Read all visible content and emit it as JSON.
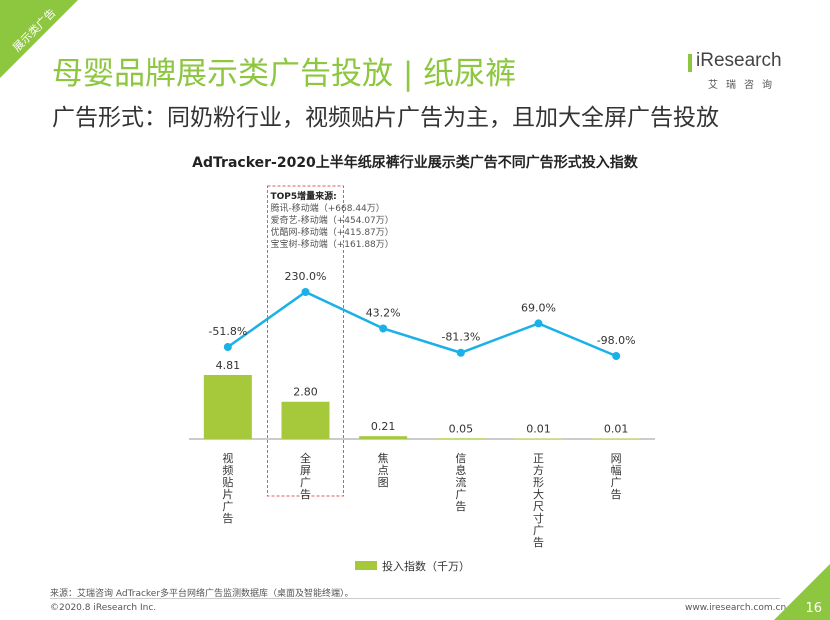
{
  "corner_tag": "展示类广告",
  "title": "母婴品牌展示类广告投放 | 纸尿裤",
  "subtitle": "广告形式：同奶粉行业，视频贴片广告为主，且加大全屏广告投放",
  "logo": {
    "name": "iResearch",
    "sub": "艾瑞咨询"
  },
  "note_lines": [
    "TOP5增量来源:",
    "腾讯-移动端（+668.44万）",
    "爱奇艺-移动端（+454.07万）",
    "优酷网-移动端（+415.87万）",
    "宝宝树-移动端（+161.88万）"
  ],
  "footer": {
    "source": "来源：艾瑞咨询 AdTracker多平台网络广告监测数据库（桌面及智能终端）。",
    "copyright": "©2020.8 iResearch Inc.",
    "site": "www.iresearch.com.cn",
    "page": "16"
  },
  "colors": {
    "bar": "#a5c93a",
    "line": "#1ab0e8",
    "accent": "#8dc63f"
  },
  "chart_data": {
    "type": "bar",
    "title": "AdTracker-2020上半年纸尿裤行业展示类广告不同广告形式投入指数",
    "categories": [
      "视频贴片广告",
      "全屏广告",
      "焦点图",
      "信息流广告",
      "正方形大尺寸广告",
      "网幅广告"
    ],
    "series": [
      {
        "name": "投入指数（千万）",
        "values": [
          4.81,
          2.8,
          0.21,
          0.05,
          0.01,
          0.01
        ],
        "labels": [
          "4.81",
          "2.80",
          "0.21",
          "0.05",
          "0.01",
          "0.01"
        ]
      }
    ],
    "growth_line": {
      "values": [
        -51.8,
        230.0,
        43.2,
        -81.3,
        69.0,
        -98.0
      ],
      "labels": [
        "-51.8%",
        "230.0%",
        "43.2%",
        "-81.3%",
        "69.0%",
        "-98.0%"
      ]
    },
    "bar_max": 4.81,
    "highlight_category_index": 1,
    "legend_position": "bottom",
    "grid": false
  }
}
